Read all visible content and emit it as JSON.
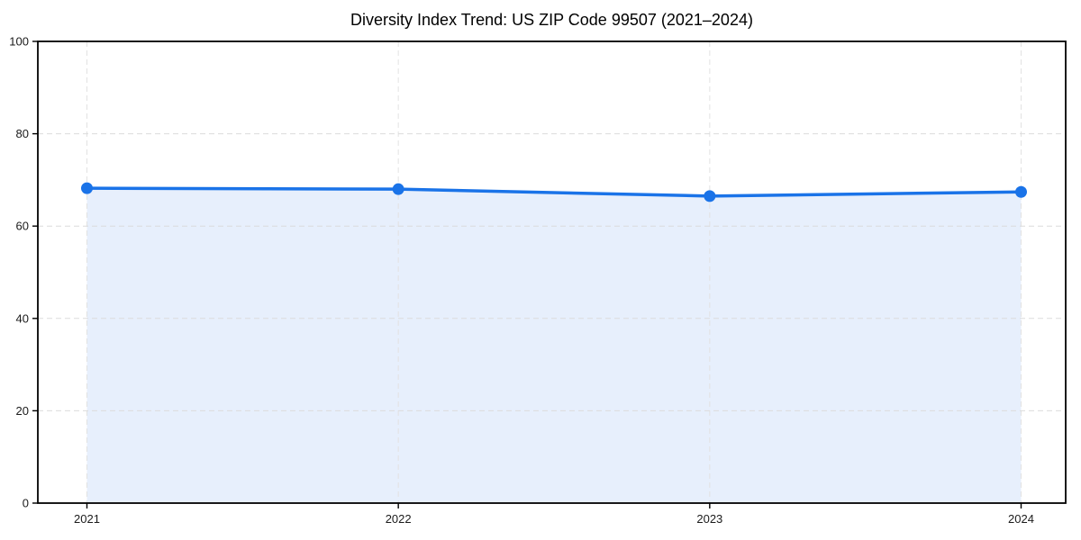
{
  "chart_data": {
    "type": "area",
    "title": "Diversity Index Trend: US ZIP Code 99507 (2021–2024)",
    "categories": [
      "2021",
      "2022",
      "2023",
      "2024"
    ],
    "series": [
      {
        "name": "Diversity Index",
        "values": [
          68.2,
          68.0,
          66.5,
          67.4
        ]
      }
    ],
    "xlabel": "",
    "ylabel": "",
    "ylim": [
      0,
      100
    ],
    "yticks": [
      0,
      20,
      40,
      60,
      80,
      100
    ],
    "grid": true,
    "grid_style": "dashed",
    "legend": false,
    "marker": "circle",
    "colors": {
      "line": "#1a73e8",
      "marker": "#1a73e8",
      "area_fill": "#e7effc",
      "grid_horizontal": "#dcdcdc",
      "grid_vertical": "#e2e2e2",
      "axis": "#000000",
      "tick_label": "#1a1a1a",
      "title": "#000000",
      "background": "#ffffff"
    }
  }
}
